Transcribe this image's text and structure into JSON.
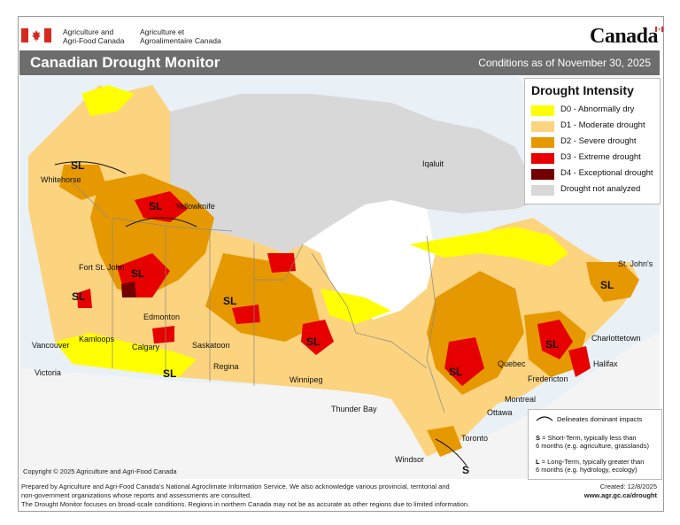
{
  "header": {
    "agency_en_line1": "Agriculture and",
    "agency_en_line2": "Agri-Food Canada",
    "agency_fr_line1": "Agriculture et",
    "agency_fr_line2": "Agroalimentaire Canada",
    "wordmark": "Canada"
  },
  "titlebar": {
    "title": "Canadian Drought Monitor",
    "conditions": "Conditions as of November 30, 2025"
  },
  "legend": {
    "title": "Drought Intensity",
    "items": [
      {
        "label": "D0 - Abnormally dry",
        "color": "#ffff00"
      },
      {
        "label": "D1 - Moderate drought",
        "color": "#fcd37f"
      },
      {
        "label": "D2 - Severe drought",
        "color": "#e69800"
      },
      {
        "label": "D3 - Extreme drought",
        "color": "#e60000"
      },
      {
        "label": "D4 - Exceptional drought",
        "color": "#730000"
      },
      {
        "label": "Drought not analyzed",
        "color": "#d8d8d8"
      }
    ]
  },
  "impacts": {
    "line_label": "Delineates dominant impacts",
    "s_code": "S",
    "s_line1": " = Short-Term, typically less than",
    "s_line2": "6 months (e.g. agriculture, grasslands)",
    "l_code": "L",
    "l_line1": " = Long-Term, typically greater  than",
    "l_line2": "6 months (e.g. hydrology, ecology)"
  },
  "cities": {
    "whitehorse": "Whitehorse",
    "yellowknife": "Yellowknife",
    "iqaluit": "Iqaluit",
    "fort_st_john": "Fort St. John",
    "edmonton": "Edmonton",
    "kamloops": "Kamloops",
    "vancouver": "Vancouver",
    "victoria": "Victoria",
    "calgary": "Calgary",
    "saskatoon": "Saskatoon",
    "regina": "Regina",
    "winnipeg": "Winnipeg",
    "thunder_bay": "Thunder Bay",
    "toronto": "Toronto",
    "windsor": "Windsor",
    "ottawa": "Ottawa",
    "montreal": "Montreal",
    "quebec": "Quebec",
    "fredericton": "Fredericton",
    "halifax": "Halifax",
    "charlottetown": "Charlottetown",
    "st_johns": "St. John's"
  },
  "sl_label": "SL",
  "s_label": "S",
  "copyright": "Copyright © 2025 Agriculture and Agri-Food Canada",
  "footer": {
    "line1": "Prepared by Agriculture and Agri-Food Canada's National Agroclimate Information Service.  We also acknowledge various provincial, territorial and",
    "line2": "non-government organizations whose reports and assessments are consulted.",
    "line3": "The Drought Monitor focuses on broad-scale conditions.  Regions in northern Canada may not be as accurate as other regions due to limited information."
  },
  "created": "Created: 12/8/2025",
  "url": "www.agr.gc.ca/drought"
}
